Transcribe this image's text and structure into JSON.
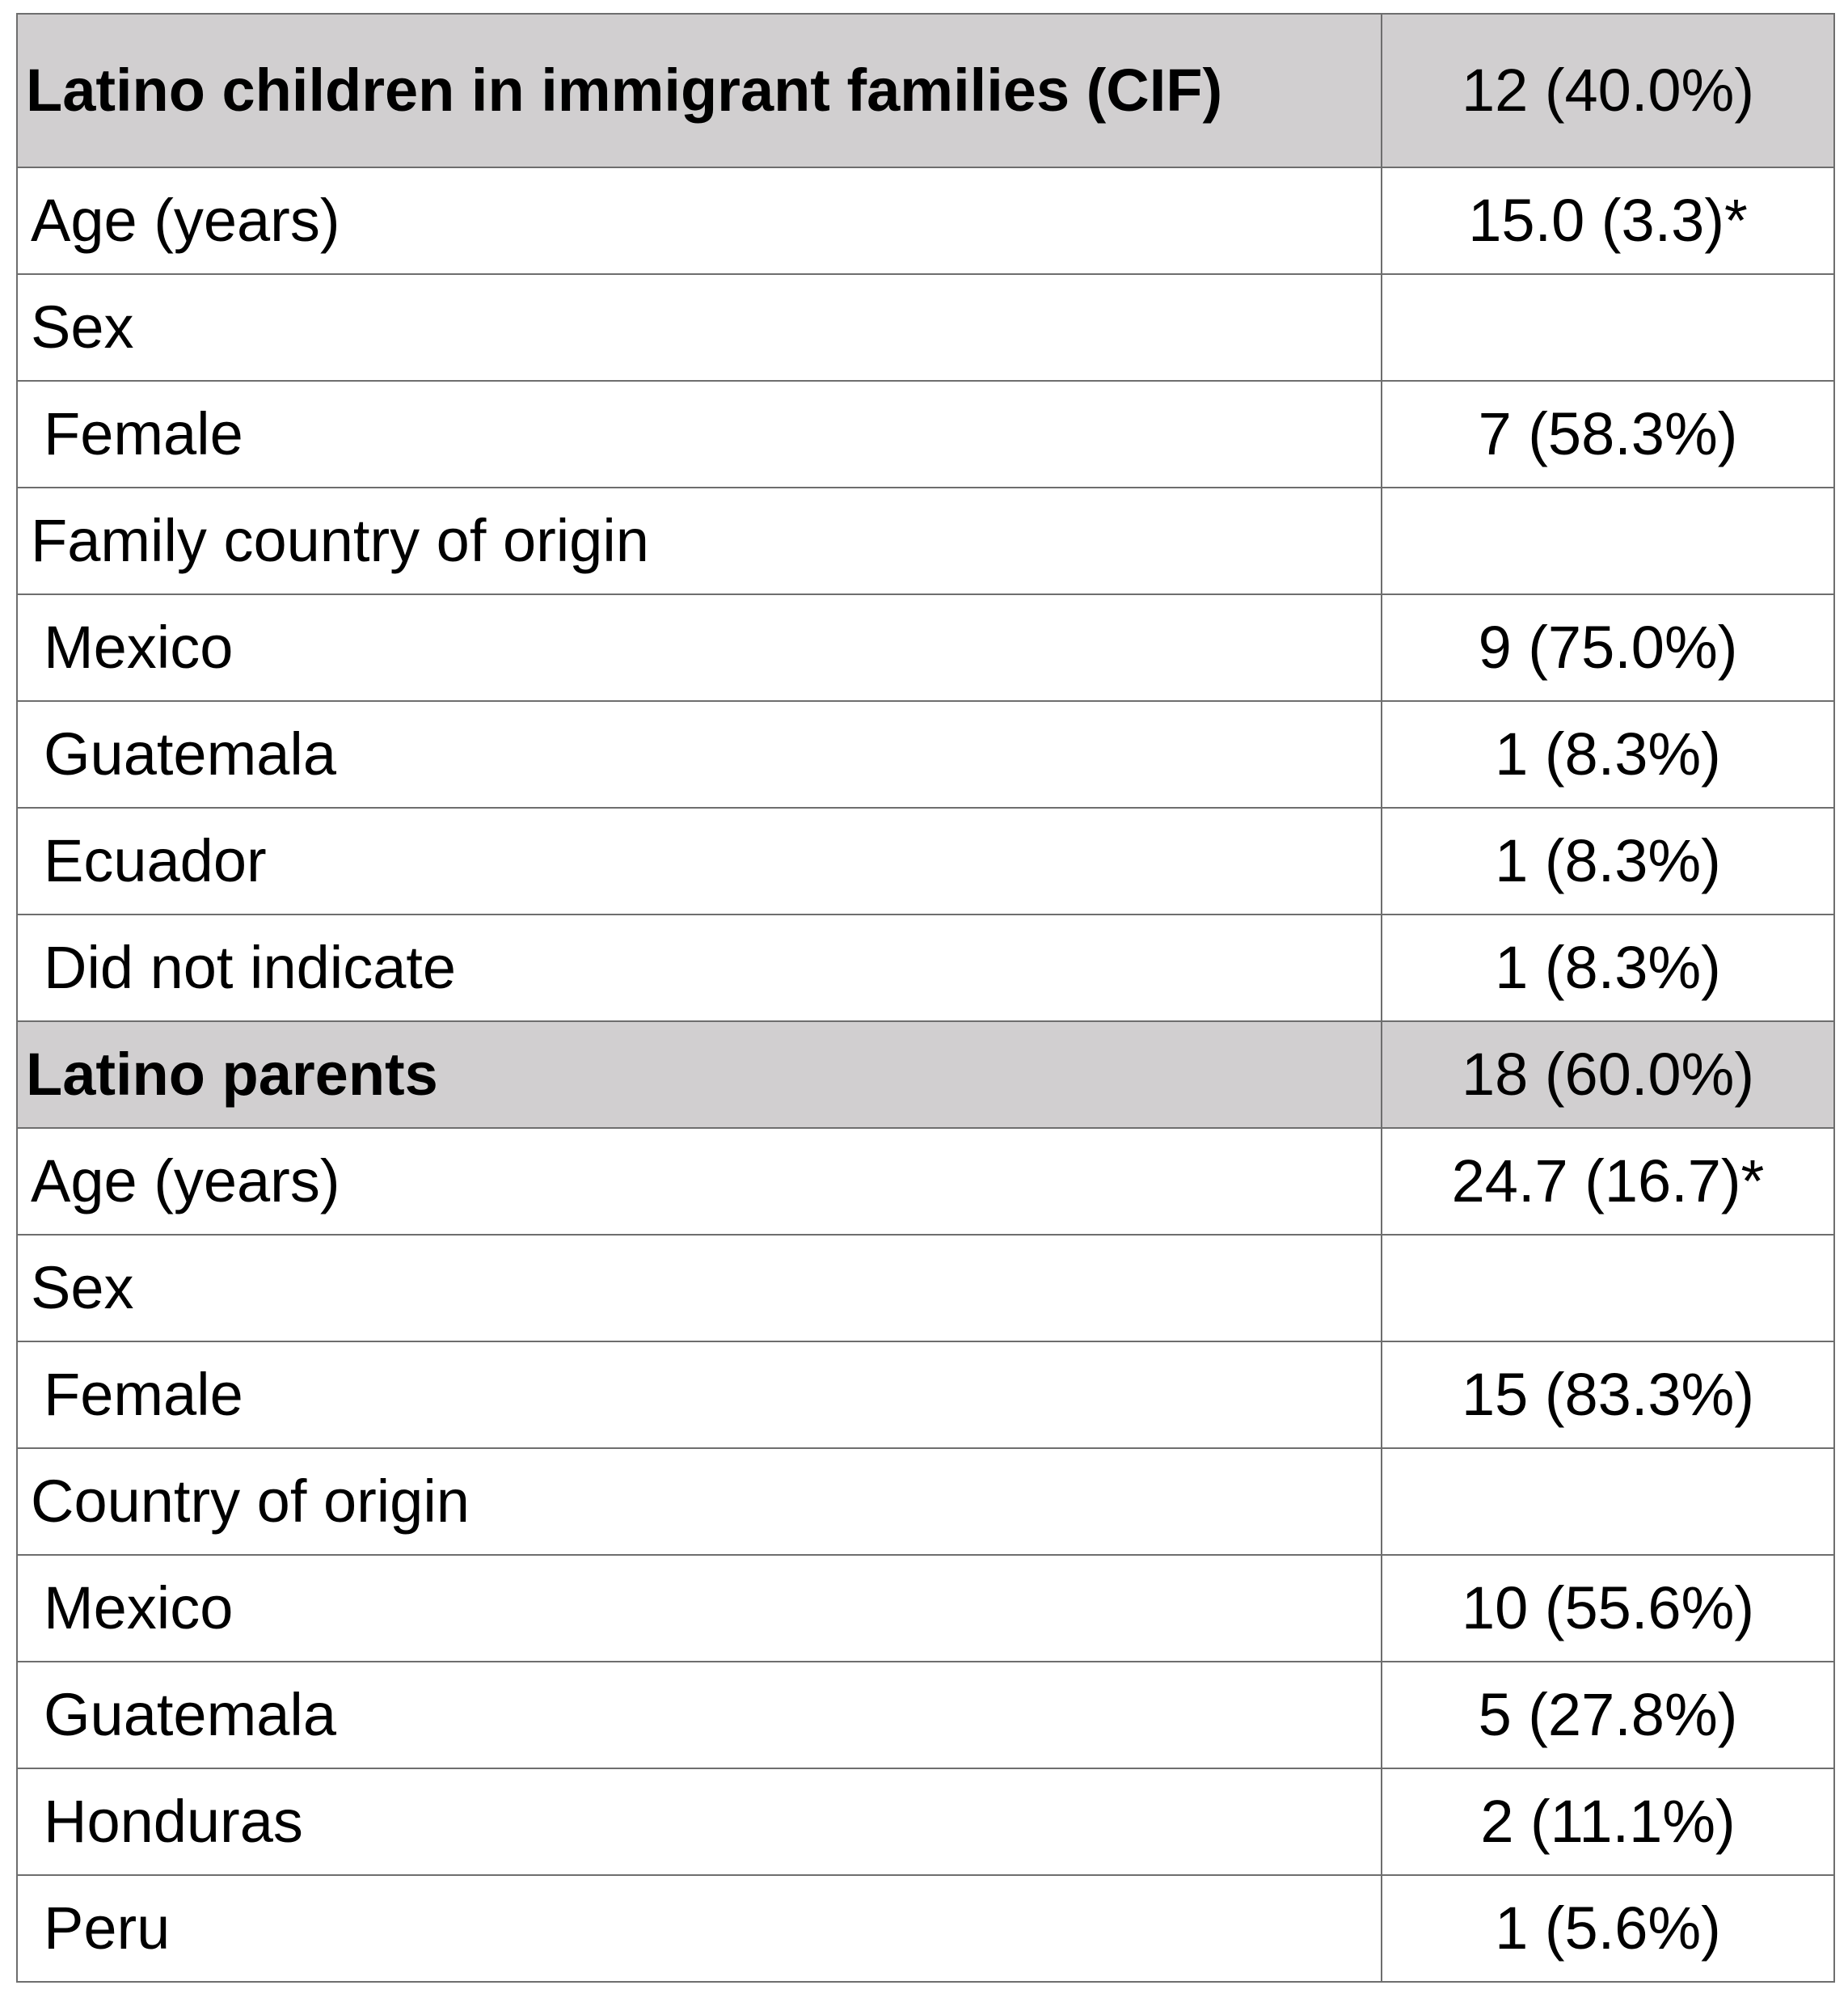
{
  "rows": [
    {
      "label": "Latino children in immigrant families (CIF)",
      "value": "12 (40.0%)"
    },
    {
      "label": "Age (years)",
      "value": "15.0 (3.3)*"
    },
    {
      "label": "Sex",
      "value": ""
    },
    {
      "label": "Female",
      "value": "7 (58.3%)"
    },
    {
      "label": "Family country of origin",
      "value": ""
    },
    {
      "label": "Mexico",
      "value": "9 (75.0%)"
    },
    {
      "label": "Guatemala",
      "value": "1 (8.3%)"
    },
    {
      "label": "Ecuador",
      "value": "1 (8.3%)"
    },
    {
      "label": "Did not indicate",
      "value": "1 (8.3%)"
    },
    {
      "label": "Latino parents",
      "value": "18 (60.0%)"
    },
    {
      "label": "Age (years)",
      "value": "24.7 (16.7)*"
    },
    {
      "label": "Sex",
      "value": ""
    },
    {
      "label": "Female",
      "value": "15 (83.3%)"
    },
    {
      "label": "Country of origin",
      "value": ""
    },
    {
      "label": "Mexico",
      "value": "10 (55.6%)"
    },
    {
      "label": "Guatemala",
      "value": "5 (27.8%)"
    },
    {
      "label": "Honduras",
      "value": "2 (11.1%)"
    },
    {
      "label": "Peru",
      "value": "1 (5.6%)"
    }
  ],
  "colors": {
    "header_background": "#d1cfd0",
    "border": "#6e6e6e"
  }
}
